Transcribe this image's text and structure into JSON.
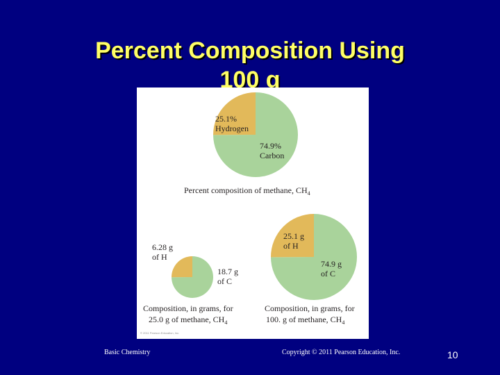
{
  "slide": {
    "title_line1": "Percent Composition Using",
    "title_line2": "100 g",
    "footer_left": "Basic Chemistry",
    "footer_center": "Copyright © 2011 Pearson Education, Inc.",
    "page_number": "10"
  },
  "figure": {
    "percent_pie": {
      "hydrogen_pct": "25.1%",
      "hydrogen_name": "Hydrogen",
      "carbon_pct": "74.9%",
      "carbon_name": "Carbon",
      "caption_main": "Percent composition of methane, CH",
      "caption_sub": "4"
    },
    "small_pie": {
      "h_value": "6.28 g",
      "h_of": "of H",
      "c_value": "18.7 g",
      "c_of": "of C",
      "caption_line1": "Composition, in grams, for",
      "caption_line2_main": "25.0 g of methane, CH",
      "caption_line2_sub": "4"
    },
    "large_pie": {
      "h_value": "25.1 g",
      "h_of": "of H",
      "c_value": "74.9 g",
      "c_of": "of C",
      "caption_line1": "Composition, in grams, for",
      "caption_line2_main": "100. g of methane, CH",
      "caption_line2_sub": "4"
    },
    "credit": "© 2011 Pearson Education, Inc.",
    "hydrogen_fraction": 0.251,
    "colors": {
      "hydrogen": "#e2b95a",
      "carbon": "#a9d39b",
      "background": "#ffffff",
      "slide": "#000080",
      "title": "#ffff66"
    }
  }
}
